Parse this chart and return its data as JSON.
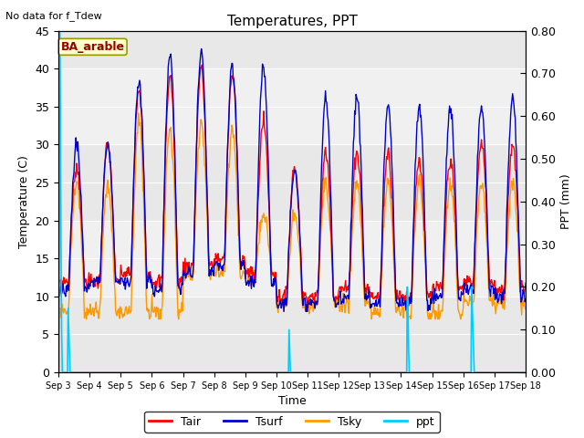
{
  "title": "Temperatures, PPT",
  "note": "No data for f_Tdew",
  "station_label": "BA_arable",
  "xlabel": "Time",
  "ylabel_left": "Temperature (C)",
  "ylabel_right": "PPT (mm)",
  "ylim_left": [
    0,
    45
  ],
  "ylim_right": [
    0,
    0.8
  ],
  "x_ticks": [
    "Sep 3",
    "Sep 4",
    "Sep 5",
    "Sep 6",
    "Sep 7",
    "Sep 8",
    "Sep 9",
    "Sep 10",
    "Sep 11",
    "Sep 12",
    "Sep 13",
    "Sep 14",
    "Sep 15",
    "Sep 16",
    "Sep 17",
    "Sep 18"
  ],
  "colors": {
    "Tair": "#ff0000",
    "Tsurf": "#0000cc",
    "Tsky": "#ff9900",
    "ppt": "#00ccff"
  },
  "bg_bands": [
    [
      0,
      10,
      "#e8e8e8"
    ],
    [
      10,
      20,
      "#f0f0f0"
    ],
    [
      20,
      30,
      "#e8e8e8"
    ],
    [
      30,
      40,
      "#f0f0f0"
    ],
    [
      40,
      45,
      "#e8e8e8"
    ]
  ],
  "legend": [
    "Tair",
    "Tsurf",
    "Tsky",
    "ppt"
  ],
  "figsize": [
    6.4,
    4.8
  ],
  "dpi": 100
}
